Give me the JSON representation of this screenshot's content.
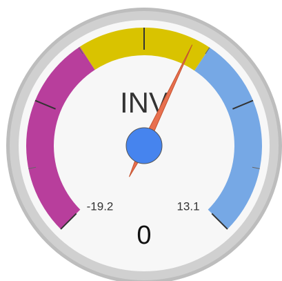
{
  "chart_data": {
    "type": "gauge",
    "label": "INV",
    "value": 0,
    "min": -19.2,
    "max": 13.1,
    "bands": [
      {
        "from": -19.2,
        "to": -7,
        "color": "#b83e9c"
      },
      {
        "from": -7,
        "to": 1,
        "color": "#d9c300"
      },
      {
        "from": 1,
        "to": 13.1,
        "color": "#76a8e5"
      }
    ],
    "major_ticks": 5,
    "minor_ticks": 2,
    "needle_color": "#e8704f",
    "hub_color": "#4684ee"
  }
}
